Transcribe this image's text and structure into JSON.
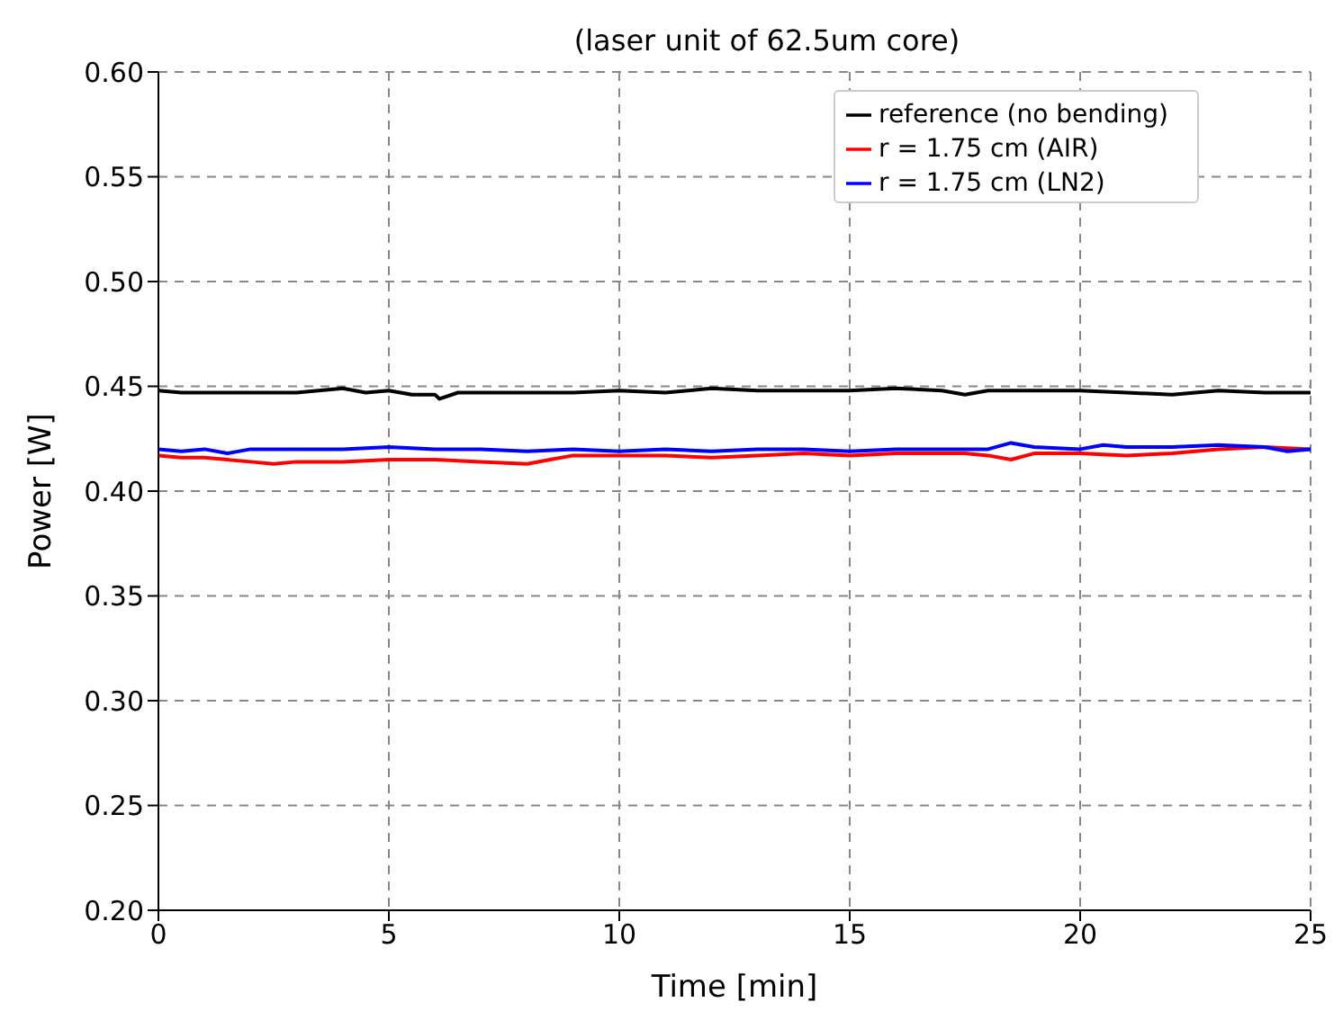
{
  "chart_data": {
    "type": "line",
    "title": "(laser unit of 62.5um core)",
    "xlabel": "Time [min]",
    "ylabel": "Power [W]",
    "xlim": [
      0,
      25
    ],
    "xticks": [
      0,
      5,
      10,
      15,
      20,
      25
    ],
    "ylim": [
      0.2,
      0.6
    ],
    "yticks": [
      {
        "value": 0.2,
        "label": "0.20"
      },
      0.25,
      {
        "value": 0.3,
        "label": "0.30"
      },
      0.35,
      {
        "value": 0.4,
        "label": "0.40"
      },
      0.45,
      {
        "value": 0.5,
        "label": "0.50"
      },
      0.55,
      {
        "value": 0.6,
        "label": "0.60"
      }
    ],
    "grid": true,
    "legend": "top right",
    "line_style": "solid",
    "marker": "none",
    "series": [
      {
        "name": "reference (no bending)",
        "color": "#000000",
        "x": [
          0,
          0.5,
          1,
          2,
          3,
          4,
          4.5,
          5,
          5.5,
          6,
          6.1,
          6.5,
          7,
          8,
          9,
          10,
          11,
          12,
          13,
          14,
          15,
          16,
          17,
          17.5,
          18,
          19,
          20,
          21,
          22,
          22.5,
          23,
          24,
          25
        ],
        "values": [
          0.448,
          0.447,
          0.447,
          0.447,
          0.447,
          0.449,
          0.447,
          0.448,
          0.446,
          0.446,
          0.444,
          0.447,
          0.447,
          0.447,
          0.447,
          0.448,
          0.447,
          0.449,
          0.448,
          0.448,
          0.448,
          0.449,
          0.448,
          0.446,
          0.448,
          0.448,
          0.448,
          0.447,
          0.446,
          0.447,
          0.448,
          0.447,
          0.447
        ]
      },
      {
        "name": "r = 1.75 cm (AIR)",
        "color": "#ff0000",
        "x": [
          0,
          0.5,
          1,
          1.5,
          2,
          2.5,
          3,
          4,
          5,
          6,
          7,
          8,
          8.5,
          9,
          10,
          11,
          12,
          13,
          14,
          15,
          16,
          17,
          17.5,
          18,
          18.5,
          19,
          20,
          21,
          22,
          23,
          24,
          25
        ],
        "values": [
          0.417,
          0.416,
          0.416,
          0.415,
          0.414,
          0.413,
          0.414,
          0.414,
          0.415,
          0.415,
          0.414,
          0.413,
          0.415,
          0.417,
          0.417,
          0.417,
          0.416,
          0.417,
          0.418,
          0.417,
          0.418,
          0.418,
          0.418,
          0.417,
          0.415,
          0.418,
          0.418,
          0.417,
          0.418,
          0.42,
          0.421,
          0.42
        ]
      },
      {
        "name": "r = 1.75 cm (LN2)",
        "color": "#0000ff",
        "x": [
          0,
          0.5,
          1,
          1.5,
          2,
          3,
          4,
          5,
          6,
          7,
          8,
          9,
          10,
          11,
          12,
          13,
          14,
          15,
          16,
          17,
          18,
          18.5,
          19,
          20,
          20.5,
          21,
          22,
          23,
          24,
          24.5,
          25
        ],
        "values": [
          0.42,
          0.419,
          0.42,
          0.418,
          0.42,
          0.42,
          0.42,
          0.421,
          0.42,
          0.42,
          0.419,
          0.42,
          0.419,
          0.42,
          0.419,
          0.42,
          0.42,
          0.419,
          0.42,
          0.42,
          0.42,
          0.423,
          0.421,
          0.42,
          0.422,
          0.421,
          0.421,
          0.422,
          0.421,
          0.419,
          0.42
        ]
      }
    ]
  }
}
